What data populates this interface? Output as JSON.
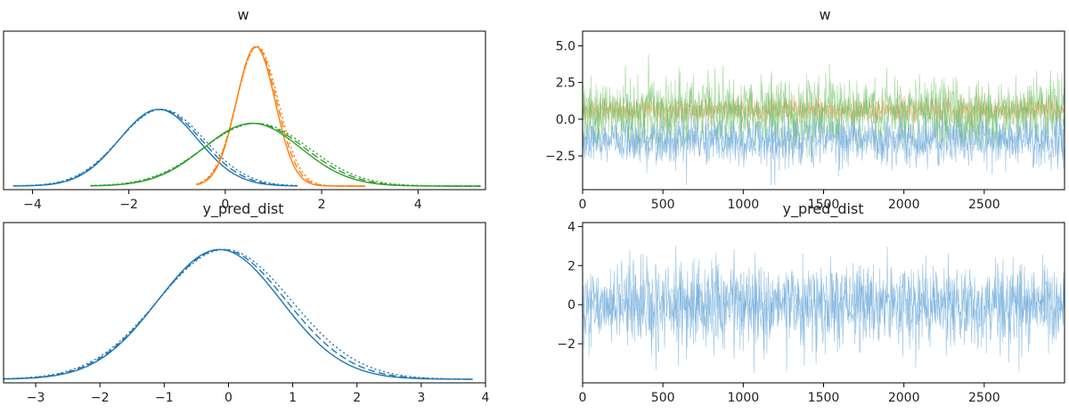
{
  "palette": {
    "blue": "#1f77b4",
    "orange": "#ff7f0e",
    "green": "#2ca02c",
    "axis": "#000000"
  },
  "chart_data": [
    {
      "panel": "density-w",
      "type": "line",
      "title": "w",
      "xlim": [
        -4.6,
        5.4
      ],
      "ylim": [
        0,
        1.0
      ],
      "xticks": [
        -4,
        -2,
        0,
        2,
        4
      ],
      "yticks": [],
      "grid": false,
      "series": [
        {
          "color": "blue",
          "mu": -1.35,
          "sigma": 0.85,
          "peak": 0.55,
          "range": [
            -4.4,
            1.5
          ]
        },
        {
          "color": "orange",
          "mu": 0.65,
          "sigma": 0.42,
          "peak": 1.0,
          "range": [
            -0.6,
            2.9
          ]
        },
        {
          "color": "green",
          "mu": 0.6,
          "sigma": 1.05,
          "peak": 0.45,
          "range": [
            -2.8,
            5.3
          ]
        }
      ]
    },
    {
      "panel": "trace-w",
      "type": "line",
      "title": "w",
      "xlim": [
        0,
        3000
      ],
      "ylim": [
        -4.8,
        6.0
      ],
      "xticks": [
        0,
        500,
        1000,
        1500,
        2000,
        2500
      ],
      "yticks": [
        5.0,
        2.5,
        0.0,
        -2.5
      ],
      "ytick_labels": [
        "5.0",
        "2.5",
        "0.0",
        "−2.5"
      ],
      "grid": false,
      "series": [
        {
          "color": "blue",
          "mean": -1.35,
          "sd": 0.85
        },
        {
          "color": "orange",
          "mean": 0.65,
          "sd": 0.42
        },
        {
          "color": "green",
          "mean": 0.6,
          "sd": 1.05
        }
      ]
    },
    {
      "panel": "density-y_pred_dist",
      "type": "line",
      "title": "y_pred_dist",
      "xlim": [
        -3.5,
        4.0
      ],
      "ylim": [
        0,
        1.0
      ],
      "xticks": [
        -3,
        -2,
        -1,
        0,
        1,
        2,
        3,
        4
      ],
      "ytick_labels": [],
      "xtick_labels": [
        "−3",
        "−2",
        "−1",
        "0",
        "1",
        "2",
        "3",
        "4"
      ],
      "grid": false,
      "series": [
        {
          "color": "blue",
          "mu": -0.1,
          "sigma": 1.0,
          "peak": 0.92,
          "range": [
            -3.5,
            3.8
          ]
        }
      ]
    },
    {
      "panel": "trace-y_pred_dist",
      "type": "line",
      "title": "y_pred_dist",
      "xlim": [
        0,
        3000
      ],
      "ylim": [
        -4.0,
        4.2
      ],
      "xticks": [
        0,
        500,
        1000,
        1500,
        2000,
        2500
      ],
      "yticks": [
        4,
        2,
        0,
        -2
      ],
      "ytick_labels": [
        "4",
        "2",
        "0",
        "−2"
      ],
      "grid": false,
      "series": [
        {
          "color": "blue",
          "mean": 0.0,
          "sd": 1.0
        }
      ]
    }
  ],
  "w_density_xtick_labels": [
    "−4",
    "−2",
    "0",
    "2",
    "4"
  ]
}
